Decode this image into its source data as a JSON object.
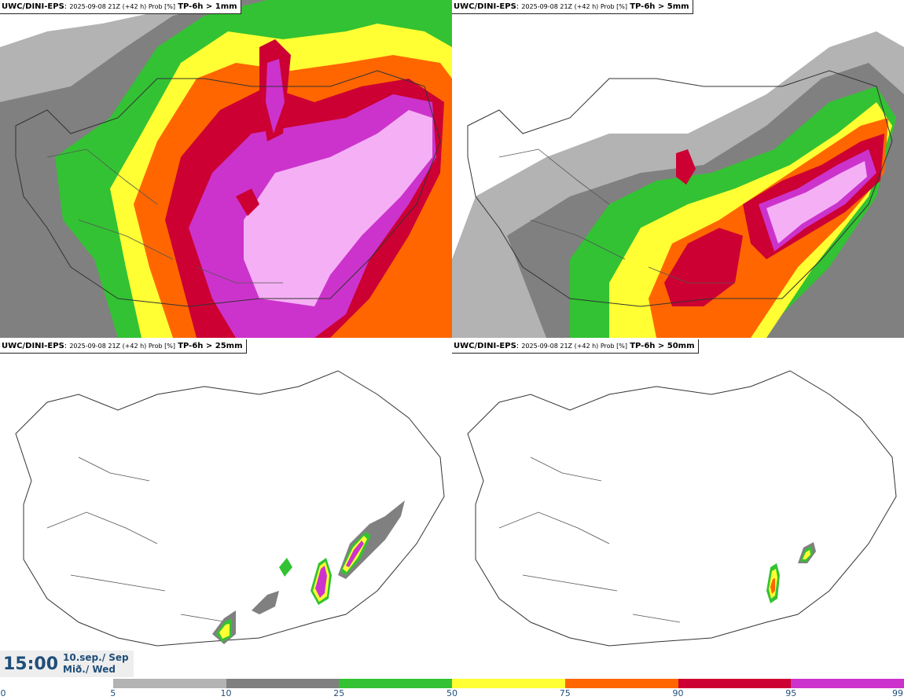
{
  "panels": [
    {
      "model": "UWC/DINI-EPS",
      "run": "2025-09-08 21Z (+42 h) Prob [%]",
      "variable": "TP-6h > 1mm"
    },
    {
      "model": "UWC/DINI-EPS",
      "run": "2025-09-08 21Z (+42 h) Prob [%]",
      "variable": "TP-6h > 5mm"
    },
    {
      "model": "UWC/DINI-EPS",
      "run": "2025-09-08 21Z (+42 h) Prob [%]",
      "variable": "TP-6h > 25mm"
    },
    {
      "model": "UWC/DINI-EPS",
      "run": "2025-09-08 21Z (+42 h) Prob [%]",
      "variable": "TP-6h > 50mm"
    }
  ],
  "time": {
    "clock": "15:00",
    "date": "10.sep./ Sep",
    "weekday": "Mið./ Wed"
  },
  "colorbar": {
    "ticks": [
      "0",
      "5",
      "10",
      "25",
      "50",
      "75",
      "90",
      "95",
      "99"
    ],
    "colors": [
      "#ffffff",
      "#b3b3b3",
      "#808080",
      "#33c233",
      "#ffff33",
      "#ff6600",
      "#cc0033",
      "#cc33cc",
      "#f5b0f5"
    ]
  }
}
